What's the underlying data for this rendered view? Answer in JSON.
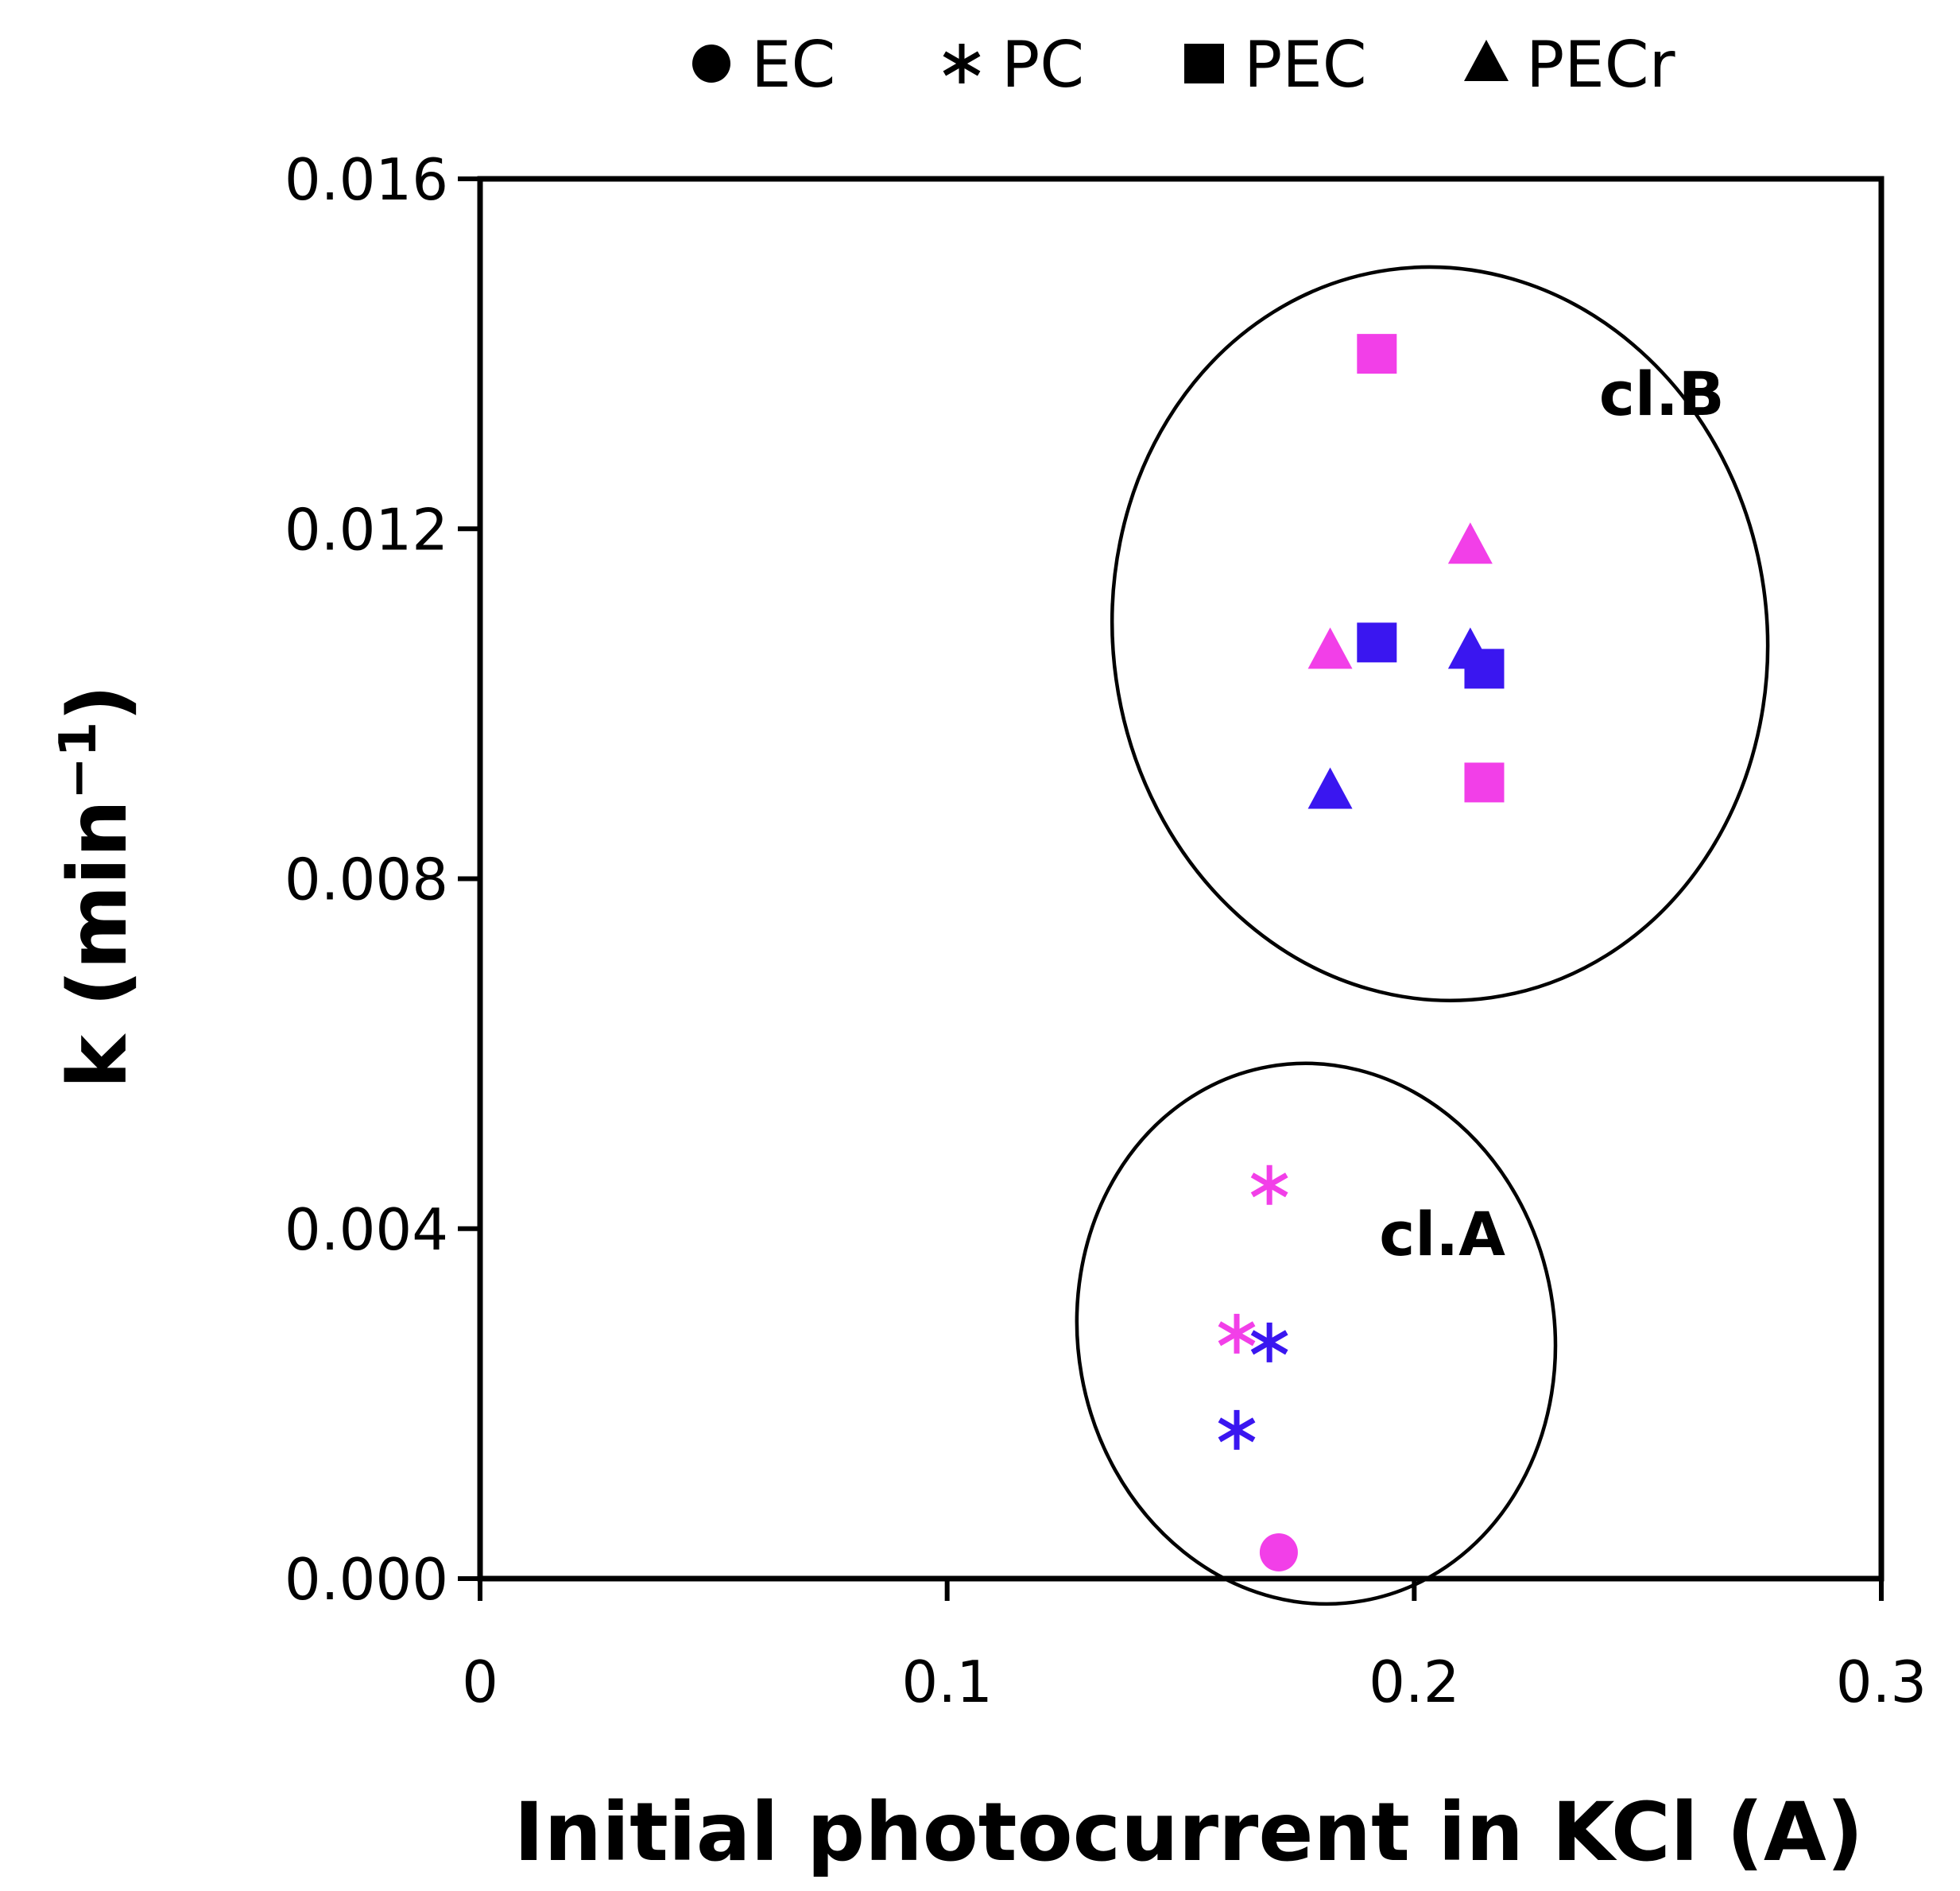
{
  "chart_data": {
    "type": "scatter",
    "title": "",
    "xlabel": "Initial photocurrent in KCl (A)",
    "ylabel_main": "k (min",
    "ylabel_sup": "−1",
    "ylabel_close": ")",
    "xlim": [
      0,
      0.3
    ],
    "ylim": [
      0,
      0.016
    ],
    "x_ticks": [
      0,
      0.1,
      0.2,
      0.3
    ],
    "x_tick_labels": [
      "0",
      "0.1",
      "0.2",
      "0.3"
    ],
    "y_ticks": [
      0,
      0.004,
      0.008,
      0.012,
      0.016
    ],
    "y_tick_labels": [
      "0.000",
      "0.004",
      "0.008",
      "0.012",
      "0.016"
    ],
    "grid": false,
    "legend_position": "top",
    "colors": {
      "magenta": "#f23fe8",
      "blue": "#3a16f0",
      "axis": "#000000"
    },
    "series": [
      {
        "name": "EC",
        "marker": "circle",
        "points": [
          {
            "x": 0.171,
            "y": 0.0003,
            "color": "magenta"
          }
        ]
      },
      {
        "name": "PC",
        "marker": "asterisk",
        "points": [
          {
            "x": 0.169,
            "y": 0.0045,
            "color": "magenta"
          },
          {
            "x": 0.162,
            "y": 0.0028,
            "color": "magenta"
          },
          {
            "x": 0.169,
            "y": 0.0027,
            "color": "blue"
          },
          {
            "x": 0.162,
            "y": 0.0017,
            "color": "blue"
          }
        ]
      },
      {
        "name": "PEC",
        "marker": "square",
        "points": [
          {
            "x": 0.192,
            "y": 0.014,
            "color": "magenta"
          },
          {
            "x": 0.192,
            "y": 0.0107,
            "color": "blue"
          },
          {
            "x": 0.215,
            "y": 0.0104,
            "color": "blue"
          },
          {
            "x": 0.215,
            "y": 0.0091,
            "color": "magenta"
          }
        ]
      },
      {
        "name": "PECr",
        "marker": "triangle",
        "points": [
          {
            "x": 0.212,
            "y": 0.0118,
            "color": "magenta"
          },
          {
            "x": 0.182,
            "y": 0.0106,
            "color": "magenta"
          },
          {
            "x": 0.212,
            "y": 0.0106,
            "color": "blue"
          },
          {
            "x": 0.182,
            "y": 0.009,
            "color": "blue"
          }
        ]
      }
    ],
    "annotations": [
      {
        "text": "cl.B",
        "x": 0.253,
        "y": 0.0133
      },
      {
        "text": "cl.A",
        "x": 0.206,
        "y": 0.0037
      }
    ],
    "clusters": [
      {
        "name": "cl.B",
        "cx": 0.2055,
        "cy": 0.0108,
        "rx": 0.07,
        "ry": 0.0042
      },
      {
        "name": "cl.A",
        "cx": 0.179,
        "cy": 0.0028,
        "rx": 0.051,
        "ry": 0.0031
      }
    ]
  }
}
